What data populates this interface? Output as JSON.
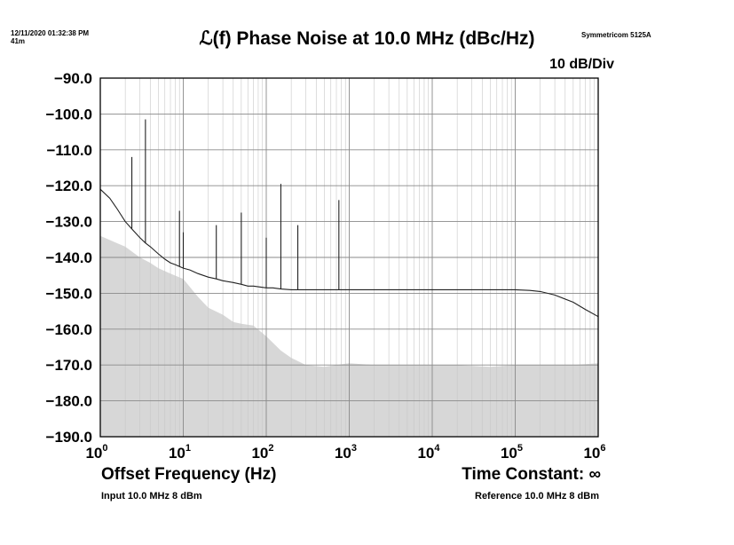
{
  "header": {
    "timestamp": "12/11/2020 01:32:38 PM",
    "duration": "41m",
    "instrument": "Symmetricom 5125A"
  },
  "chart_data": {
    "type": "line",
    "title": "ℒ(f) Phase Noise at 10.0 MHz (dBc/Hz)",
    "scale_label": "10 dB/Div",
    "xlabel": "Offset Frequency (Hz)",
    "ylabel": "",
    "x_scale": "log",
    "xlim": [
      1,
      1000000
    ],
    "ylim": [
      -190,
      -90
    ],
    "grid": true,
    "y_ticks": [
      "−90.0",
      "−100.0",
      "−110.0",
      "−120.0",
      "−130.0",
      "−140.0",
      "−150.0",
      "−160.0",
      "−170.0",
      "−180.0",
      "−190.0"
    ],
    "x_ticks": [
      {
        "base": "10",
        "exp": "0"
      },
      {
        "base": "10",
        "exp": "1"
      },
      {
        "base": "10",
        "exp": "2"
      },
      {
        "base": "10",
        "exp": "3"
      },
      {
        "base": "10",
        "exp": "4"
      },
      {
        "base": "10",
        "exp": "5"
      },
      {
        "base": "10",
        "exp": "6"
      }
    ],
    "series": [
      {
        "role": "measured phase noise",
        "color": "#222222",
        "x": [
          1,
          1.3,
          1.6,
          2,
          2.5,
          3,
          3.5,
          4,
          5,
          6,
          7,
          8,
          10,
          12,
          15,
          20,
          25,
          30,
          40,
          50,
          60,
          70,
          80,
          100,
          120,
          150,
          200,
          250,
          300,
          400,
          500,
          700,
          1000,
          2000,
          5000,
          10000,
          20000,
          50000,
          100000,
          150000,
          200000,
          300000,
          500000,
          700000,
          1000000
        ],
        "y": [
          -121,
          -123.5,
          -126.5,
          -130,
          -132.5,
          -134.5,
          -136,
          -137,
          -139,
          -140.5,
          -141.5,
          -142,
          -143,
          -143.5,
          -144.5,
          -145.5,
          -146,
          -146.5,
          -147,
          -147.5,
          -148,
          -148,
          -148.2,
          -148.5,
          -148.5,
          -148.8,
          -149,
          -149,
          -149,
          -149,
          -149,
          -149,
          -149,
          -149,
          -149,
          -149,
          -149,
          -149,
          -149,
          -149.2,
          -149.5,
          -150.5,
          -152.5,
          -154.5,
          -156.5
        ]
      },
      {
        "role": "spurs",
        "color": "#222222",
        "x": [
          2.4,
          3.5,
          9,
          10,
          25,
          50,
          100,
          150,
          240,
          750
        ],
        "y": [
          -112,
          -101.5,
          -127,
          -133,
          -131,
          -127.5,
          -134.5,
          -119.5,
          -131,
          -124
        ]
      },
      {
        "role": "noise floor",
        "color": "#d7d7d7",
        "x": [
          1,
          2,
          3,
          4,
          5,
          7,
          10,
          15,
          20,
          30,
          40,
          50,
          70,
          100,
          150,
          200,
          300,
          500,
          700,
          1000,
          2000,
          5000,
          10000,
          20000,
          50000,
          100000,
          200000,
          500000,
          1000000
        ],
        "y": [
          -134,
          -137,
          -140,
          -141.5,
          -143,
          -144.5,
          -146,
          -151,
          -154,
          -156,
          -158,
          -158.5,
          -159,
          -162,
          -166,
          -168,
          -170,
          -170.5,
          -170,
          -169.5,
          -170,
          -170,
          -170,
          -170,
          -170.5,
          -170,
          -170,
          -170,
          -169.5
        ]
      }
    ]
  },
  "footer": {
    "time_constant": "Time Constant: ∞",
    "input": "Input 10.0 MHz 8 dBm",
    "reference": "Reference 10.0 MHz 8 dBm"
  }
}
